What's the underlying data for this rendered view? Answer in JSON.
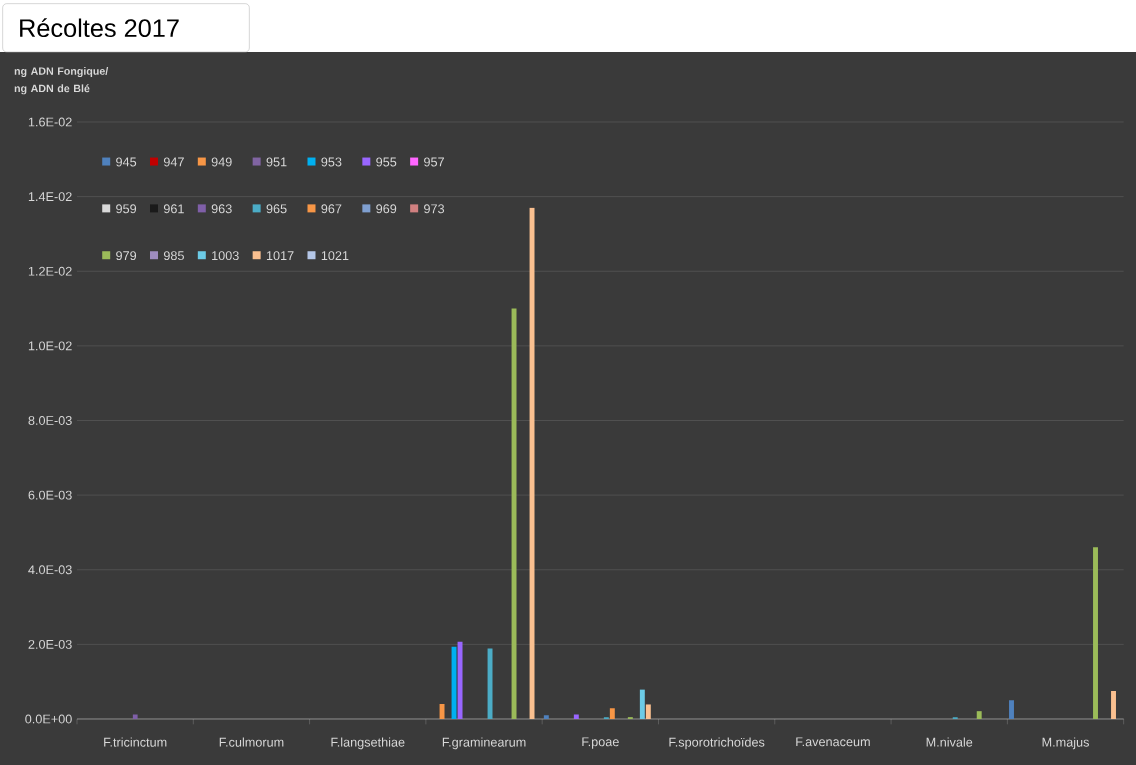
{
  "chart_data": {
    "type": "bar",
    "title": "Récoltes 2017",
    "ylabel": "ng ADN Fongique/ ng ADN de Blé",
    "categories": [
      "F.tricinctum",
      "F.culmorum",
      "F.langsethiae",
      "F.graminearum",
      "F.poae",
      "F.sporotrichoïdes",
      "F.avenaceum",
      "M.nivale",
      "M.majus"
    ],
    "series": [
      {
        "name": "945",
        "color": "#4f81bd",
        "values": [
          0,
          0,
          0,
          0,
          0.0001,
          0,
          0,
          0,
          0.0005
        ]
      },
      {
        "name": "947",
        "color": "#c00000",
        "values": [
          0,
          0,
          0,
          0,
          0,
          0,
          0,
          0,
          0
        ]
      },
      {
        "name": "949",
        "color": "#f79646",
        "values": [
          0,
          0,
          0,
          0.0004,
          0,
          0,
          0,
          0,
          0
        ]
      },
      {
        "name": "951",
        "color": "#8064a2",
        "values": [
          0,
          0,
          0,
          0,
          0,
          0,
          0,
          0,
          0
        ]
      },
      {
        "name": "953",
        "color": "#00b0f0",
        "values": [
          0,
          0,
          0,
          0.00194,
          0,
          0,
          0,
          0,
          0
        ]
      },
      {
        "name": "955",
        "color": "#9966ff",
        "values": [
          0,
          0,
          0,
          0.00207,
          0.00012,
          0,
          0,
          0,
          0
        ]
      },
      {
        "name": "957",
        "color": "#ff66ff",
        "values": [
          0,
          0,
          0,
          0,
          0,
          0,
          0,
          0,
          0
        ]
      },
      {
        "name": "959",
        "color": "#d9d9d9",
        "values": [
          0,
          0,
          0,
          0,
          0,
          0,
          0,
          0,
          0
        ]
      },
      {
        "name": "961",
        "color": "#1a1a1a",
        "values": [
          0,
          0,
          0,
          0,
          0,
          0,
          0,
          0,
          0
        ]
      },
      {
        "name": "963",
        "color": "#7f5fa8",
        "values": [
          0.00012,
          0,
          0,
          0,
          0,
          0,
          0,
          0,
          0
        ]
      },
      {
        "name": "965",
        "color": "#4bacc6",
        "values": [
          0,
          0,
          0,
          0.00189,
          5e-05,
          0,
          0,
          5e-05,
          0
        ]
      },
      {
        "name": "967",
        "color": "#f79646",
        "values": [
          0,
          0,
          0,
          0,
          0.00029,
          0,
          0,
          0,
          0
        ]
      },
      {
        "name": "969",
        "color": "#7f9fd0",
        "values": [
          0,
          0,
          0,
          0,
          0,
          0,
          0,
          0,
          0
        ]
      },
      {
        "name": "973",
        "color": "#d08080",
        "values": [
          0,
          0,
          0,
          0,
          0,
          0,
          0,
          0,
          0
        ]
      },
      {
        "name": "979",
        "color": "#9bbb59",
        "values": [
          0,
          0,
          0,
          0.011,
          5e-05,
          0,
          0,
          0.00021,
          0.0046
        ]
      },
      {
        "name": "985",
        "color": "#9e8cbf",
        "values": [
          0,
          0,
          0,
          0,
          0,
          0,
          0,
          0,
          0
        ]
      },
      {
        "name": "1003",
        "color": "#6ccbe6",
        "values": [
          0,
          0,
          0,
          0,
          0.00079,
          0,
          0,
          0,
          0
        ]
      },
      {
        "name": "1017",
        "color": "#fac090",
        "values": [
          0,
          0,
          0,
          0.0137,
          0.00039,
          0,
          0,
          0,
          0.00075
        ]
      },
      {
        "name": "1021",
        "color": "#b4c6e7",
        "values": [
          0,
          0,
          0,
          0,
          0,
          0,
          0,
          0,
          0
        ]
      }
    ],
    "ylim": [
      0,
      0.016
    ],
    "yticks": [
      {
        "value": 0,
        "label": "0.0E+00"
      },
      {
        "value": 0.002,
        "label": "2.0E-03"
      },
      {
        "value": 0.004,
        "label": "4.0E-03"
      },
      {
        "value": 0.006,
        "label": "6.0E-03"
      },
      {
        "value": 0.008,
        "label": "8.0E-03"
      },
      {
        "value": 0.01,
        "label": "1.0E-02"
      },
      {
        "value": 0.012,
        "label": "1.2E-02"
      },
      {
        "value": 0.014,
        "label": "1.4E-02"
      },
      {
        "value": 0.016,
        "label": "1.6E-02"
      }
    ],
    "grid": "y",
    "legend": "top left"
  }
}
